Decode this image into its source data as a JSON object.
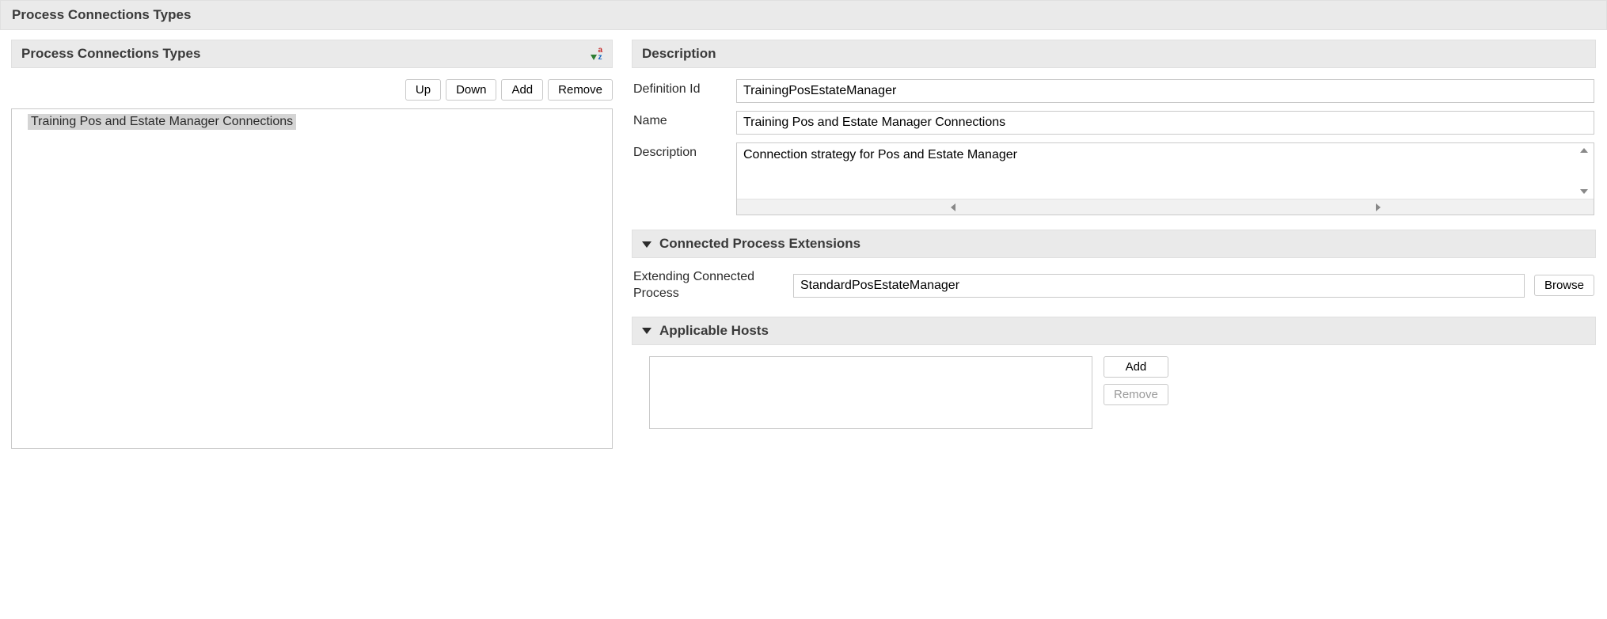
{
  "page": {
    "title": "Process Connections Types"
  },
  "left": {
    "header": "Process Connections Types",
    "buttons": {
      "up": "Up",
      "down": "Down",
      "add": "Add",
      "remove": "Remove"
    },
    "items": [
      {
        "label": "Training Pos and Estate Manager Connections",
        "selected": true
      }
    ]
  },
  "description": {
    "header": "Description",
    "labels": {
      "definitionId": "Definition Id",
      "name": "Name",
      "description": "Description"
    },
    "values": {
      "definitionId": "TrainingPosEstateManager",
      "name": "Training Pos and Estate Manager Connections",
      "description": "Connection strategy for Pos and Estate Manager"
    }
  },
  "extensions": {
    "header": "Connected Process Extensions",
    "label": "Extending Connected Process",
    "value": "StandardPosEstateManager",
    "browse": "Browse"
  },
  "hosts": {
    "header": "Applicable Hosts",
    "buttons": {
      "add": "Add",
      "remove": "Remove"
    }
  }
}
